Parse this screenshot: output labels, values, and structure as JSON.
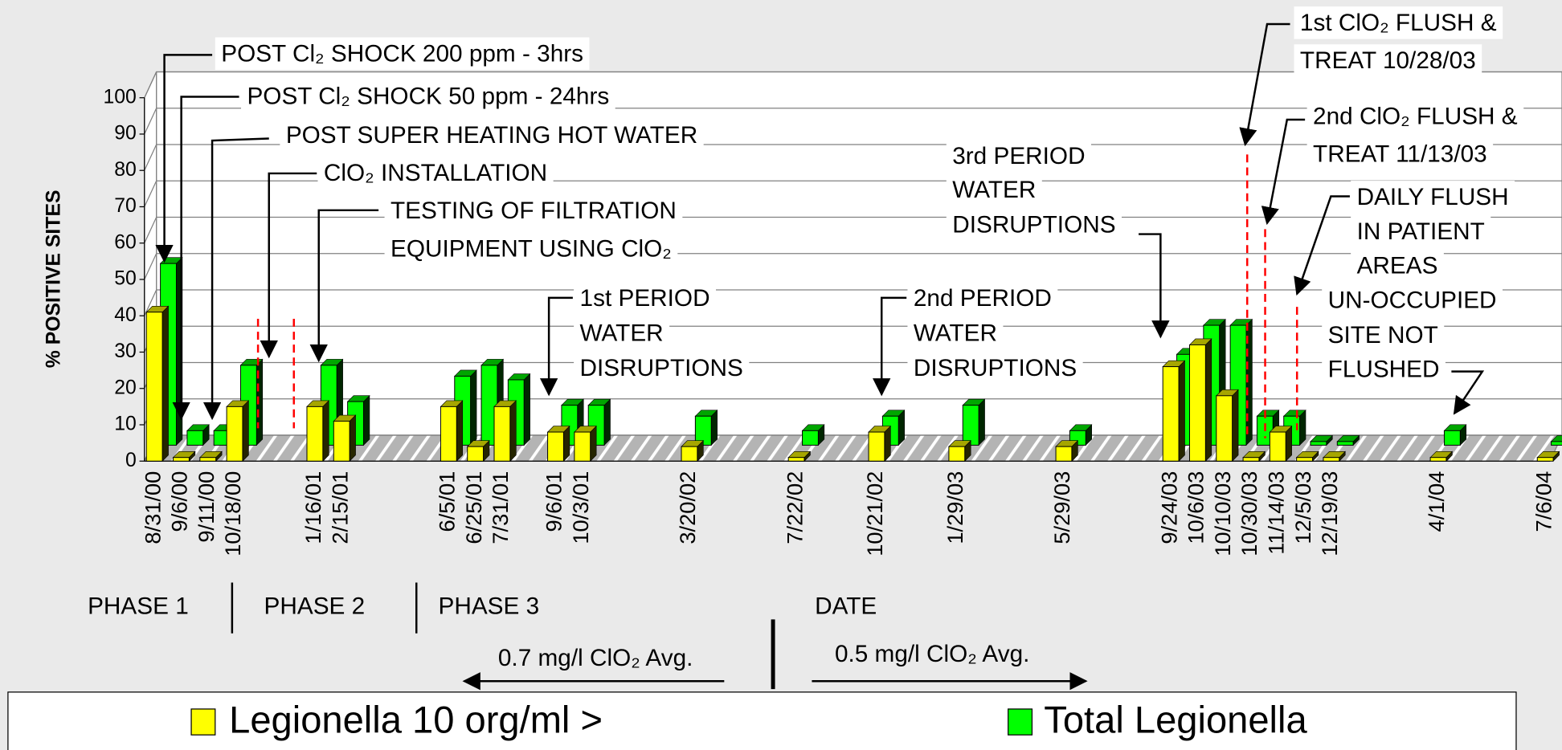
{
  "chart_data": {
    "type": "bar",
    "ylabel": "% POSITIVE SITES",
    "xlabel": "DATE",
    "ylim": [
      0,
      100
    ],
    "yticks": [
      0,
      10,
      20,
      30,
      40,
      50,
      60,
      70,
      80,
      90,
      100
    ],
    "grid": true,
    "legend": "bottom",
    "categories": [
      "8/31/00",
      "9/6/00",
      "9/11/00",
      "10/18/00",
      null,
      null,
      "1/16/01",
      "2/15/01",
      null,
      null,
      null,
      "6/5/01",
      "6/25/01",
      "7/31/01",
      null,
      "9/6/01",
      "10/3/01",
      null,
      null,
      null,
      "3/20/02",
      null,
      null,
      null,
      "7/22/02",
      null,
      null,
      "10/21/02",
      null,
      null,
      "1/29/03",
      null,
      null,
      null,
      "5/29/03",
      null,
      null,
      null,
      "9/24/03",
      "10/6/03",
      "10/10/03",
      "10/30/03",
      "11/14/03",
      "12/5/03",
      "12/19/03",
      null,
      null,
      null,
      "4/1/04",
      null,
      null,
      null,
      "7/6/04"
    ],
    "series": [
      {
        "name": "Legionella 10 org/ml >",
        "color": "#ffff00",
        "values": [
          41,
          1,
          1,
          15,
          null,
          null,
          15,
          11,
          null,
          null,
          null,
          15,
          4,
          15,
          null,
          8,
          8,
          null,
          null,
          null,
          4,
          null,
          null,
          null,
          1,
          null,
          null,
          8,
          null,
          null,
          4,
          null,
          null,
          null,
          4,
          null,
          null,
          null,
          26,
          32,
          18,
          1,
          8,
          1,
          1,
          null,
          null,
          null,
          1,
          null,
          null,
          null,
          1
        ]
      },
      {
        "name": "Total Legionella",
        "color": "#00ff00",
        "values": [
          50,
          4,
          4,
          22,
          null,
          null,
          22,
          12,
          null,
          null,
          null,
          19,
          22,
          18,
          null,
          11,
          11,
          null,
          null,
          null,
          8,
          null,
          null,
          null,
          4,
          null,
          null,
          8,
          null,
          null,
          11,
          null,
          null,
          null,
          4,
          null,
          null,
          null,
          25,
          33,
          33,
          8,
          8,
          1,
          1,
          null,
          null,
          null,
          4,
          null,
          null,
          null,
          1
        ]
      }
    ],
    "annotations": [
      {
        "lines": [
          "POST Cl₂ SHOCK 200 ppm - 3hrs"
        ]
      },
      {
        "lines": [
          "POST Cl₂  SHOCK 50 ppm - 24hrs"
        ]
      },
      {
        "lines": [
          "POST SUPER HEATING HOT WATER"
        ]
      },
      {
        "lines": [
          "ClO₂ INSTALLATION"
        ]
      },
      {
        "lines": [
          "TESTING OF FILTRATION",
          "EQUIPMENT USING ClO₂"
        ]
      },
      {
        "lines": [
          "1st PERIOD",
          "WATER",
          "DISRUPTIONS"
        ]
      },
      {
        "lines": [
          "2nd PERIOD",
          "WATER",
          "DISRUPTIONS"
        ]
      },
      {
        "lines": [
          "3rd PERIOD",
          "WATER",
          "DISRUPTIONS"
        ]
      },
      {
        "lines": [
          "1st ClO₂ FLUSH &",
          "TREAT 10/28/03"
        ]
      },
      {
        "lines": [
          "2nd ClO₂ FLUSH &",
          "TREAT 11/13/03"
        ]
      },
      {
        "lines": [
          "DAILY FLUSH",
          "IN PATIENT",
          "AREAS"
        ]
      },
      {
        "lines": [
          "UN-OCCUPIED",
          "SITE NOT",
          "FLUSHED"
        ]
      }
    ],
    "phases": [
      "PHASE 1",
      "PHASE 2",
      "PHASE 3"
    ],
    "dose_labels": [
      "0.7 mg/l ClO₂  Avg.",
      "0.5 mg/l ClO₂  Avg."
    ]
  }
}
